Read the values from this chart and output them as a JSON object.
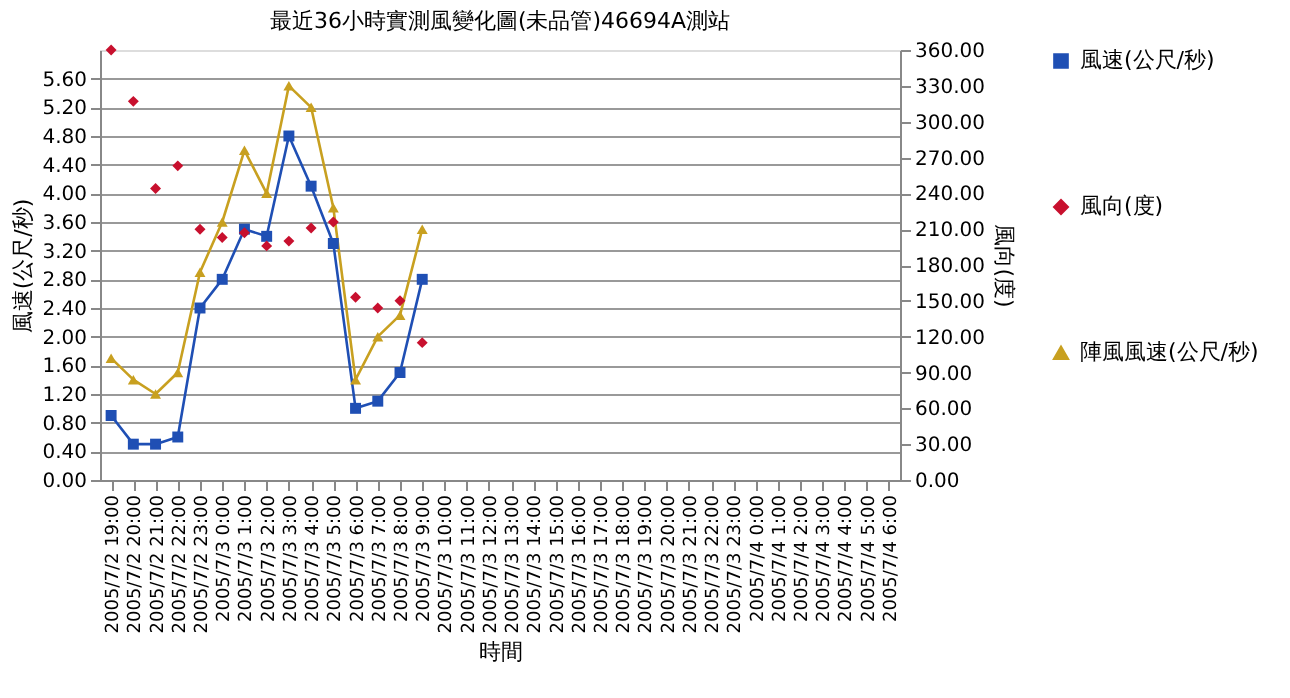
{
  "chart_data": {
    "type": "line",
    "title": "最近36小時實測風變化圖(未品管)46694A測站",
    "xlabel": "時間",
    "ylabel": "風速(公尺/秒)",
    "y2label": "風向(度)",
    "categories": [
      "2005/7/2 19:00",
      "2005/7/2 20:00",
      "2005/7/2 21:00",
      "2005/7/2 22:00",
      "2005/7/2 23:00",
      "2005/7/3 0:00",
      "2005/7/3 1:00",
      "2005/7/3 2:00",
      "2005/7/3 3:00",
      "2005/7/3 4:00",
      "2005/7/3 5:00",
      "2005/7/3 6:00",
      "2005/7/3 7:00",
      "2005/7/3 8:00",
      "2005/7/3 9:00",
      "2005/7/3 10:00",
      "2005/7/3 11:00",
      "2005/7/3 12:00",
      "2005/7/3 13:00",
      "2005/7/3 14:00",
      "2005/7/3 15:00",
      "2005/7/3 16:00",
      "2005/7/3 17:00",
      "2005/7/3 18:00",
      "2005/7/3 19:00",
      "2005/7/3 20:00",
      "2005/7/3 21:00",
      "2005/7/3 22:00",
      "2005/7/3 23:00",
      "2005/7/4 0:00",
      "2005/7/4 1:00",
      "2005/7/4 2:00",
      "2005/7/4 3:00",
      "2005/7/4 4:00",
      "2005/7/4 5:00",
      "2005/7/4 6:00"
    ],
    "series": [
      {
        "name": "風速(公尺/秒)",
        "color": "#1f4fb4",
        "marker": "square",
        "values": [
          0.9,
          0.5,
          0.5,
          0.6,
          2.4,
          2.8,
          3.5,
          3.4,
          4.8,
          4.1,
          3.3,
          1.0,
          1.1,
          1.5,
          2.8,
          null,
          null,
          null,
          null,
          null,
          null,
          null,
          null,
          null,
          null,
          null,
          null,
          null,
          null,
          null,
          null,
          null,
          null,
          null,
          null,
          null
        ]
      },
      {
        "name": "風向(度)",
        "type": "scatter",
        "axis": "y2",
        "color": "#c8102e",
        "marker": "diamond",
        "values": [
          360,
          317,
          244,
          263,
          210,
          203,
          207,
          196,
          200,
          211,
          216,
          153,
          144,
          150,
          115,
          null,
          null,
          null,
          null,
          null,
          null,
          null,
          null,
          null,
          null,
          null,
          null,
          null,
          null,
          null,
          null,
          null,
          null,
          null,
          null,
          null
        ]
      },
      {
        "name": "陣風風速(公尺/秒)",
        "color": "#c8a020",
        "marker": "triangle",
        "values": [
          1.7,
          1.4,
          1.2,
          1.5,
          2.9,
          3.6,
          4.6,
          4.0,
          5.5,
          5.2,
          3.8,
          1.4,
          2.0,
          2.3,
          3.5,
          null,
          null,
          null,
          null,
          null,
          null,
          null,
          null,
          null,
          null,
          null,
          null,
          null,
          null,
          null,
          null,
          null,
          null,
          null,
          null,
          null
        ]
      }
    ],
    "ylim": [
      0,
      6
    ],
    "yticks": [
      {
        "value": 0,
        "label": "0.00"
      },
      {
        "value": 0.4,
        "label": "0.40"
      },
      {
        "value": 0.8,
        "label": "0.80"
      },
      {
        "value": 1.2,
        "label": "1.20"
      },
      {
        "value": 1.6,
        "label": "1.60"
      },
      {
        "value": 2.0,
        "label": "2.00"
      },
      {
        "value": 2.4,
        "label": "2.40"
      },
      {
        "value": 2.8,
        "label": "2.80"
      },
      {
        "value": 3.2,
        "label": "3.20"
      },
      {
        "value": 3.6,
        "label": "3.60"
      },
      {
        "value": 4.0,
        "label": "4.00"
      },
      {
        "value": 4.4,
        "label": "4.40"
      },
      {
        "value": 4.8,
        "label": "4.80"
      },
      {
        "value": 5.2,
        "label": "5.20"
      },
      {
        "value": 5.6,
        "label": "5.60"
      }
    ],
    "y2lim": [
      0,
      360
    ],
    "y2ticks": [
      {
        "value": 0,
        "label": "0.00"
      },
      {
        "value": 30,
        "label": "30.00"
      },
      {
        "value": 60,
        "label": "60.00"
      },
      {
        "value": 90,
        "label": "90.00"
      },
      {
        "value": 120,
        "label": "120.00"
      },
      {
        "value": 150,
        "label": "150.00"
      },
      {
        "value": 180,
        "label": "180.00"
      },
      {
        "value": 210,
        "label": "210.00"
      },
      {
        "value": 240,
        "label": "240.00"
      },
      {
        "value": 270,
        "label": "270.00"
      },
      {
        "value": 300,
        "label": "300.00"
      },
      {
        "value": 330,
        "label": "330.00"
      },
      {
        "value": 360,
        "label": "360.00"
      }
    ],
    "grid": "y",
    "legend": "right"
  }
}
